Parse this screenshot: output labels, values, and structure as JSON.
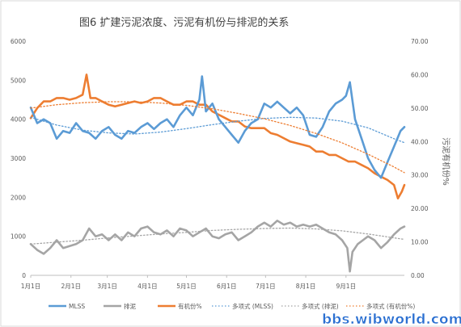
{
  "chart_data": {
    "type": "line",
    "title": "图6 扩建污泥浓度、污泥有机份与排泥的关系",
    "ylabel_right": "污泥有机份%",
    "x_categories": [
      "1月1日",
      "2月1日",
      "3月1日",
      "4月1日",
      "5月1日",
      "6月1日",
      "7月1日",
      "8月1日",
      "9月1日"
    ],
    "x_range_days": [
      0,
      260
    ],
    "left_axis": {
      "ticks": [
        "0",
        "1000",
        "2000",
        "3000",
        "4000",
        "5000",
        "6000"
      ],
      "range": [
        0,
        6000
      ]
    },
    "right_axis": {
      "ticks": [
        "0.00",
        "10.00",
        "20.00",
        "30.00",
        "40.00",
        "50.00",
        "60.00",
        "70.00"
      ],
      "range": [
        0,
        70
      ]
    },
    "series": [
      {
        "name": "MLSS",
        "axis": "left",
        "color": "#5b9bd5",
        "points": [
          [
            0,
            4300
          ],
          [
            5,
            3900
          ],
          [
            10,
            4000
          ],
          [
            15,
            3900
          ],
          [
            20,
            3500
          ],
          [
            25,
            3700
          ],
          [
            30,
            3650
          ],
          [
            35,
            3900
          ],
          [
            40,
            3700
          ],
          [
            45,
            3650
          ],
          [
            50,
            3500
          ],
          [
            55,
            3700
          ],
          [
            60,
            3800
          ],
          [
            65,
            3600
          ],
          [
            70,
            3500
          ],
          [
            75,
            3700
          ],
          [
            80,
            3650
          ],
          [
            85,
            3800
          ],
          [
            90,
            3900
          ],
          [
            95,
            3750
          ],
          [
            100,
            3900
          ],
          [
            105,
            4000
          ],
          [
            110,
            3800
          ],
          [
            115,
            4100
          ],
          [
            120,
            4300
          ],
          [
            125,
            4100
          ],
          [
            130,
            4500
          ],
          [
            132,
            5100
          ],
          [
            135,
            4200
          ],
          [
            140,
            4400
          ],
          [
            145,
            4000
          ],
          [
            150,
            3800
          ],
          [
            155,
            3600
          ],
          [
            160,
            3400
          ],
          [
            165,
            3700
          ],
          [
            170,
            3900
          ],
          [
            175,
            4000
          ],
          [
            180,
            4400
          ],
          [
            185,
            4300
          ],
          [
            190,
            4450
          ],
          [
            195,
            4300
          ],
          [
            200,
            4150
          ],
          [
            205,
            4300
          ],
          [
            210,
            4100
          ],
          [
            215,
            3600
          ],
          [
            220,
            3550
          ],
          [
            225,
            3800
          ],
          [
            230,
            4200
          ],
          [
            235,
            4400
          ],
          [
            240,
            4500
          ],
          [
            243,
            4600
          ],
          [
            246,
            4950
          ],
          [
            250,
            4000
          ],
          [
            255,
            3500
          ],
          [
            260,
            3000
          ],
          [
            265,
            2700
          ],
          [
            270,
            2500
          ],
          [
            275,
            2900
          ],
          [
            280,
            3300
          ],
          [
            285,
            3700
          ],
          [
            288,
            3800
          ]
        ]
      },
      {
        "name": "排泥",
        "axis": "left",
        "color": "#a5a5a5",
        "points": [
          [
            0,
            800
          ],
          [
            5,
            650
          ],
          [
            10,
            550
          ],
          [
            15,
            700
          ],
          [
            20,
            900
          ],
          [
            25,
            700
          ],
          [
            30,
            750
          ],
          [
            35,
            800
          ],
          [
            40,
            900
          ],
          [
            45,
            1200
          ],
          [
            50,
            1000
          ],
          [
            55,
            1050
          ],
          [
            60,
            900
          ],
          [
            65,
            1050
          ],
          [
            70,
            900
          ],
          [
            75,
            1100
          ],
          [
            80,
            1000
          ],
          [
            85,
            1200
          ],
          [
            90,
            1250
          ],
          [
            95,
            1100
          ],
          [
            100,
            1050
          ],
          [
            105,
            1150
          ],
          [
            110,
            1000
          ],
          [
            115,
            1200
          ],
          [
            120,
            1150
          ],
          [
            125,
            1000
          ],
          [
            130,
            1100
          ],
          [
            135,
            1200
          ],
          [
            140,
            1000
          ],
          [
            145,
            950
          ],
          [
            150,
            1050
          ],
          [
            155,
            1100
          ],
          [
            160,
            900
          ],
          [
            165,
            1000
          ],
          [
            170,
            1100
          ],
          [
            175,
            1250
          ],
          [
            180,
            1350
          ],
          [
            185,
            1250
          ],
          [
            190,
            1400
          ],
          [
            195,
            1300
          ],
          [
            200,
            1350
          ],
          [
            205,
            1250
          ],
          [
            210,
            1300
          ],
          [
            215,
            1250
          ],
          [
            220,
            1300
          ],
          [
            225,
            1200
          ],
          [
            230,
            1100
          ],
          [
            235,
            1050
          ],
          [
            240,
            900
          ],
          [
            244,
            700
          ],
          [
            246,
            100
          ],
          [
            248,
            600
          ],
          [
            252,
            800
          ],
          [
            256,
            900
          ],
          [
            260,
            1000
          ],
          [
            265,
            900
          ],
          [
            270,
            700
          ],
          [
            275,
            850
          ],
          [
            280,
            1050
          ],
          [
            285,
            1200
          ],
          [
            288,
            1250
          ]
        ]
      },
      {
        "name": "有机份%",
        "axis": "right",
        "color": "#ed7d31",
        "points": [
          [
            0,
            47
          ],
          [
            5,
            50
          ],
          [
            10,
            52
          ],
          [
            15,
            52
          ],
          [
            20,
            53
          ],
          [
            25,
            53
          ],
          [
            30,
            52.5
          ],
          [
            35,
            53
          ],
          [
            40,
            54
          ],
          [
            43,
            60
          ],
          [
            46,
            53
          ],
          [
            50,
            53
          ],
          [
            55,
            52
          ],
          [
            60,
            51
          ],
          [
            65,
            50.5
          ],
          [
            70,
            51
          ],
          [
            75,
            51.5
          ],
          [
            80,
            52
          ],
          [
            85,
            51.5
          ],
          [
            90,
            52
          ],
          [
            95,
            53
          ],
          [
            100,
            53
          ],
          [
            105,
            52
          ],
          [
            110,
            51
          ],
          [
            115,
            51
          ],
          [
            120,
            52
          ],
          [
            125,
            52
          ],
          [
            130,
            51
          ],
          [
            135,
            51
          ],
          [
            140,
            49
          ],
          [
            145,
            48
          ],
          [
            150,
            47
          ],
          [
            155,
            46
          ],
          [
            160,
            46
          ],
          [
            165,
            44.5
          ],
          [
            170,
            44
          ],
          [
            175,
            44
          ],
          [
            180,
            44
          ],
          [
            185,
            42.5
          ],
          [
            190,
            42
          ],
          [
            195,
            41
          ],
          [
            200,
            40
          ],
          [
            205,
            39.5
          ],
          [
            210,
            39
          ],
          [
            215,
            38.5
          ],
          [
            220,
            37
          ],
          [
            225,
            37
          ],
          [
            230,
            36
          ],
          [
            235,
            36
          ],
          [
            240,
            35
          ],
          [
            245,
            34
          ],
          [
            250,
            34
          ],
          [
            255,
            33
          ],
          [
            260,
            32
          ],
          [
            265,
            30.5
          ],
          [
            270,
            29.5
          ],
          [
            275,
            28.5
          ],
          [
            280,
            27
          ],
          [
            283,
            23
          ],
          [
            286,
            25
          ],
          [
            288,
            27
          ]
        ]
      },
      {
        "name": "多项式 (MLSS)",
        "axis": "left",
        "color": "#5b9bd5",
        "dashed": true,
        "points": [
          [
            0,
            4050
          ],
          [
            20,
            3850
          ],
          [
            40,
            3720
          ],
          [
            60,
            3650
          ],
          [
            80,
            3620
          ],
          [
            100,
            3670
          ],
          [
            120,
            3760
          ],
          [
            140,
            3860
          ],
          [
            160,
            3950
          ],
          [
            180,
            4020
          ],
          [
            200,
            4050
          ],
          [
            220,
            4030
          ],
          [
            240,
            3950
          ],
          [
            260,
            3780
          ],
          [
            280,
            3500
          ],
          [
            288,
            3400
          ]
        ]
      },
      {
        "name": "多项式 (排泥)",
        "axis": "left",
        "color": "#a5a5a5",
        "dashed": true,
        "points": [
          [
            0,
            800
          ],
          [
            20,
            850
          ],
          [
            40,
            900
          ],
          [
            60,
            960
          ],
          [
            80,
            1010
          ],
          [
            100,
            1060
          ],
          [
            120,
            1100
          ],
          [
            140,
            1150
          ],
          [
            160,
            1180
          ],
          [
            180,
            1200
          ],
          [
            200,
            1210
          ],
          [
            220,
            1190
          ],
          [
            240,
            1140
          ],
          [
            260,
            1060
          ],
          [
            280,
            960
          ],
          [
            288,
            920
          ]
        ]
      },
      {
        "name": "多项式 (有机份%)",
        "axis": "right",
        "color": "#ed7d31",
        "dashed": true,
        "points": [
          [
            0,
            50
          ],
          [
            20,
            51
          ],
          [
            40,
            51.6
          ],
          [
            60,
            51.9
          ],
          [
            80,
            51.9
          ],
          [
            100,
            51.5
          ],
          [
            120,
            50.8
          ],
          [
            140,
            49.8
          ],
          [
            160,
            48.4
          ],
          [
            180,
            46.8
          ],
          [
            200,
            44.8
          ],
          [
            220,
            42.4
          ],
          [
            240,
            39.6
          ],
          [
            260,
            36.2
          ],
          [
            280,
            32.4
          ],
          [
            288,
            30.7
          ]
        ]
      }
    ],
    "legend": {
      "placement": "bottom"
    },
    "grid": false
  },
  "watermark": "bbs.wibworld.com"
}
